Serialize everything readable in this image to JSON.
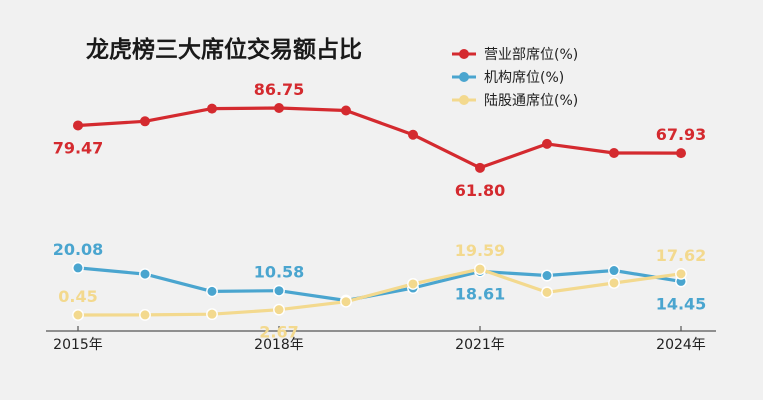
{
  "chart_data": {
    "type": "line",
    "title": "龙虎榜三大席位交易额占比",
    "xlabel": "",
    "ylabel": "",
    "ylim": [
      0,
      100
    ],
    "grid": false,
    "legend_position": "top-right",
    "x": [
      2015,
      2016,
      2017,
      2018,
      2019,
      2020,
      2021,
      2022,
      2023,
      2024
    ],
    "x_tick_labels": [
      "2015年",
      "2018年",
      "2021年",
      "2024年"
    ],
    "series": [
      {
        "name": "营业部席位(%)",
        "color": "#d42a2f",
        "values": [
          79.47,
          81.2,
          86.5,
          86.75,
          85.7,
          75.6,
          61.8,
          71.8,
          68.0,
          67.93
        ]
      },
      {
        "name": "机构席位(%)",
        "color": "#4aa5cf",
        "values": [
          20.08,
          17.5,
          10.3,
          10.58,
          6.5,
          11.7,
          18.61,
          16.9,
          19.0,
          14.45
        ]
      },
      {
        "name": "陆股通席位(%)",
        "color": "#f3d98e",
        "values": [
          0.45,
          0.48,
          0.8,
          2.67,
          6.0,
          13.4,
          19.59,
          9.9,
          13.8,
          17.62
        ]
      }
    ],
    "data_labels": [
      {
        "series": 0,
        "index": 0,
        "text": "79.47",
        "pos": "below"
      },
      {
        "series": 0,
        "index": 3,
        "text": "86.75",
        "pos": "above"
      },
      {
        "series": 0,
        "index": 6,
        "text": "61.80",
        "pos": "below"
      },
      {
        "series": 0,
        "index": 9,
        "text": "67.93",
        "pos": "above"
      },
      {
        "series": 1,
        "index": 0,
        "text": "20.08",
        "pos": "above"
      },
      {
        "series": 1,
        "index": 3,
        "text": "10.58",
        "pos": "above"
      },
      {
        "series": 1,
        "index": 6,
        "text": "18.61",
        "pos": "below"
      },
      {
        "series": 1,
        "index": 9,
        "text": "14.45",
        "pos": "below"
      },
      {
        "series": 2,
        "index": 0,
        "text": "0.45",
        "pos": "above"
      },
      {
        "series": 2,
        "index": 3,
        "text": "2.67",
        "pos": "below"
      },
      {
        "series": 2,
        "index": 6,
        "text": "19.59",
        "pos": "above"
      },
      {
        "series": 2,
        "index": 9,
        "text": "17.62",
        "pos": "above"
      }
    ]
  }
}
